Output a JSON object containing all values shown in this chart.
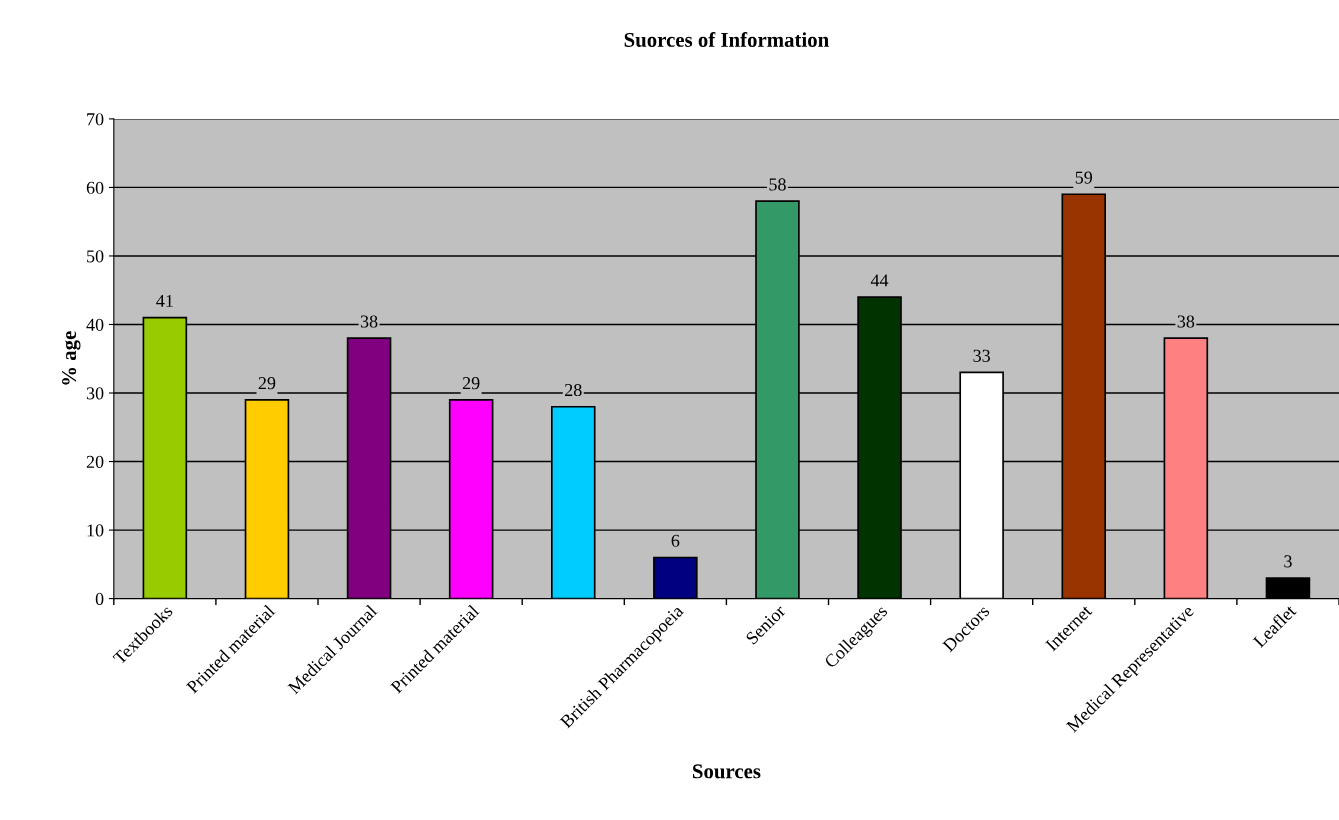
{
  "chart_data": {
    "type": "bar",
    "title": "Suorces of Information",
    "xlabel": "Sources",
    "ylabel": "% age",
    "categories": [
      "Textbooks",
      "Printed material",
      "Medical Journal",
      "Printed material",
      null,
      "British Pharmacopoeia",
      "Senior",
      "Colleagues",
      "Doctors",
      "Internet",
      "Medical Representative",
      "Leaflet"
    ],
    "values": [
      41,
      29,
      38,
      29,
      28,
      6,
      58,
      44,
      33,
      59,
      38,
      3
    ],
    "colors": [
      "#99cc00",
      "#ffcc00",
      "#800080",
      "#ff00ff",
      "#00ccff",
      "#000080",
      "#339966",
      "#003300",
      "#ffffff",
      "#993300",
      "#ff8080",
      "#000000"
    ],
    "ylim": [
      0,
      70
    ],
    "yticks": [
      0,
      10,
      20,
      30,
      40,
      50,
      60,
      70
    ],
    "grid": "y",
    "data_labels": true
  }
}
